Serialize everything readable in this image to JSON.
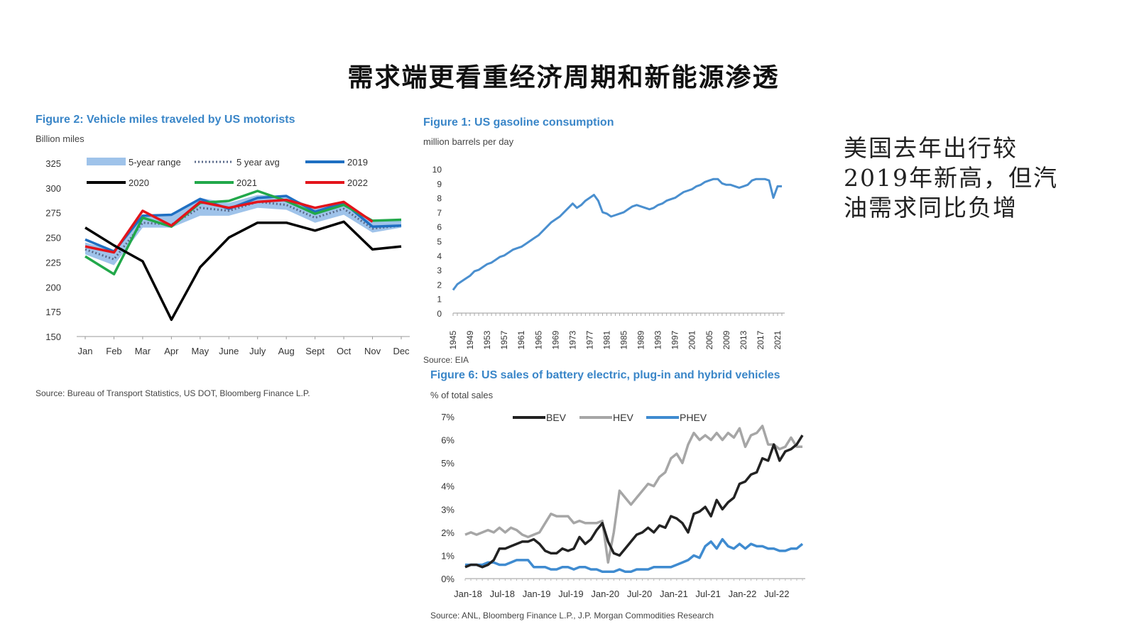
{
  "slide": {
    "title": "需求端更看重经济周期和新能源渗透",
    "side_note_lines": [
      "美国去年出行较",
      "2019年新高，但汽",
      "油需求同比负增"
    ]
  },
  "figures": {
    "vmt": {
      "title": "Figure 2: Vehicle miles traveled by US motorists",
      "unit": "Billion miles",
      "source": "Source: Bureau of Transport Statistics, US DOT, Bloomberg Finance L.P."
    },
    "gas": {
      "title": "Figure 1: US gasoline consumption",
      "unit": "million barrels per day",
      "source": "Source: EIA"
    },
    "ev": {
      "title": "Figure 6: US sales of battery electric, plug-in and hybrid vehicles",
      "unit": "% of total sales",
      "source": "Source: ANL, Bloomberg Finance L.P., J.P. Morgan Commodities Research"
    }
  },
  "colors": {
    "title_blue": "#3a86c8",
    "band": "#9fc3ea",
    "avg": "#5a6a8a",
    "s2019": "#1f6fc2",
    "s2020": "#000000",
    "s2021": "#22a84a",
    "s2022": "#e3141b",
    "gas_line": "#4a8fcf",
    "bev": "#222222",
    "hev": "#a6a6a6",
    "phev": "#3f8bd0"
  },
  "chart_data": [
    {
      "id": "vmt",
      "type": "line",
      "title": "Figure 2: Vehicle miles traveled by US motorists",
      "ylabel": "Billion miles",
      "categories": [
        "Jan",
        "Feb",
        "Mar",
        "Apr",
        "May",
        "June",
        "July",
        "Aug",
        "Sept",
        "Oct",
        "Nov",
        "Dec"
      ],
      "ylim": [
        150,
        325
      ],
      "yticks": [
        150,
        175,
        200,
        225,
        250,
        275,
        300,
        325
      ],
      "band": {
        "name": "5-year range",
        "low": [
          233,
          222,
          260,
          260,
          272,
          272,
          280,
          278,
          265,
          273,
          255,
          260
        ],
        "high": [
          245,
          237,
          273,
          274,
          290,
          285,
          293,
          292,
          280,
          287,
          267,
          267
        ]
      },
      "series": [
        {
          "name": "5 year avg",
          "key": "avg",
          "values": [
            238,
            228,
            265,
            263,
            280,
            277,
            286,
            283,
            270,
            279,
            259,
            262
          ]
        },
        {
          "name": "2019",
          "key": "s2019",
          "values": [
            248,
            236,
            272,
            273,
            289,
            279,
            290,
            292,
            276,
            285,
            261,
            262
          ]
        },
        {
          "name": "2020",
          "key": "s2020",
          "values": [
            260,
            242,
            226,
            167,
            220,
            250,
            265,
            265,
            257,
            266,
            238,
            241
          ]
        },
        {
          "name": "2021",
          "key": "s2021",
          "values": [
            231,
            213,
            270,
            261,
            285,
            287,
            297,
            287,
            274,
            283,
            267,
            268
          ]
        },
        {
          "name": "2022",
          "key": "s2022",
          "values": [
            241,
            235,
            277,
            262,
            286,
            280,
            286,
            288,
            280,
            286,
            266,
            null
          ]
        }
      ]
    },
    {
      "id": "gas",
      "type": "line",
      "title": "Figure 1: US gasoline consumption",
      "ylabel": "million barrels per day",
      "xlim": [
        1945,
        2022
      ],
      "ylim": [
        0,
        10
      ],
      "yticks": [
        0,
        1,
        2,
        3,
        4,
        5,
        6,
        7,
        8,
        9,
        10
      ],
      "xticks": [
        1945,
        1949,
        1953,
        1957,
        1961,
        1965,
        1969,
        1973,
        1977,
        1981,
        1985,
        1989,
        1993,
        1997,
        2001,
        2005,
        2009,
        2013,
        2017,
        2021
      ],
      "x": [
        1945,
        1946,
        1947,
        1948,
        1949,
        1950,
        1951,
        1952,
        1953,
        1954,
        1955,
        1956,
        1957,
        1958,
        1959,
        1960,
        1961,
        1962,
        1963,
        1964,
        1965,
        1966,
        1967,
        1968,
        1969,
        1970,
        1971,
        1972,
        1973,
        1974,
        1975,
        1976,
        1977,
        1978,
        1979,
        1980,
        1981,
        1982,
        1983,
        1984,
        1985,
        1986,
        1987,
        1988,
        1989,
        1990,
        1991,
        1992,
        1993,
        1994,
        1995,
        1996,
        1997,
        1998,
        1999,
        2000,
        2001,
        2002,
        2003,
        2004,
        2005,
        2006,
        2007,
        2008,
        2009,
        2010,
        2011,
        2012,
        2013,
        2014,
        2015,
        2016,
        2017,
        2018,
        2019,
        2020,
        2021,
        2022
      ],
      "y": [
        1.6,
        2.0,
        2.2,
        2.4,
        2.6,
        2.9,
        3.0,
        3.2,
        3.4,
        3.5,
        3.7,
        3.9,
        4.0,
        4.2,
        4.4,
        4.5,
        4.6,
        4.8,
        5.0,
        5.2,
        5.4,
        5.7,
        6.0,
        6.3,
        6.5,
        6.7,
        7.0,
        7.3,
        7.6,
        7.3,
        7.5,
        7.8,
        8.0,
        8.2,
        7.8,
        7.0,
        6.9,
        6.7,
        6.8,
        6.9,
        7.0,
        7.2,
        7.4,
        7.5,
        7.4,
        7.3,
        7.2,
        7.3,
        7.5,
        7.6,
        7.8,
        7.9,
        8.0,
        8.2,
        8.4,
        8.5,
        8.6,
        8.8,
        8.9,
        9.1,
        9.2,
        9.3,
        9.3,
        9.0,
        8.9,
        8.9,
        8.8,
        8.7,
        8.8,
        8.9,
        9.2,
        9.3,
        9.3,
        9.3,
        9.2,
        8.0,
        8.8,
        8.8
      ]
    },
    {
      "id": "ev",
      "type": "line",
      "title": "Figure 6: US sales of battery electric, plug-in and hybrid vehicles",
      "ylabel": "% of total sales",
      "ylim": [
        0,
        7
      ],
      "yticks": [
        0,
        1,
        2,
        3,
        4,
        5,
        6,
        7
      ],
      "ytick_labels": [
        "0%",
        "1%",
        "2%",
        "3%",
        "4%",
        "5%",
        "6%",
        "7%"
      ],
      "x_labels": [
        "Jan-18",
        "Jul-18",
        "Jan-19",
        "Jul-19",
        "Jan-20",
        "Jul-20",
        "Jan-21",
        "Jul-21",
        "Jan-22",
        "Jul-22"
      ],
      "x_label_positions": [
        0,
        6,
        12,
        18,
        24,
        30,
        36,
        42,
        48,
        54
      ],
      "series": [
        {
          "name": "BEV",
          "key": "bev",
          "values": [
            0.5,
            0.6,
            0.6,
            0.5,
            0.6,
            0.8,
            1.3,
            1.3,
            1.4,
            1.5,
            1.6,
            1.6,
            1.7,
            1.5,
            1.2,
            1.1,
            1.1,
            1.3,
            1.2,
            1.3,
            1.8,
            1.5,
            1.7,
            2.1,
            2.4,
            1.6,
            1.1,
            1.0,
            1.3,
            1.6,
            1.9,
            2.0,
            2.2,
            2.0,
            2.3,
            2.2,
            2.7,
            2.6,
            2.4,
            2.0,
            2.8,
            2.9,
            3.1,
            2.7,
            3.4,
            3.0,
            3.3,
            3.5,
            4.1,
            4.2,
            4.5,
            4.6,
            5.2,
            5.1,
            5.8,
            5.1,
            5.5,
            5.6,
            5.8,
            6.2
          ]
        },
        {
          "name": "HEV",
          "key": "hev",
          "values": [
            1.9,
            2.0,
            1.9,
            2.0,
            2.1,
            2.0,
            2.2,
            2.0,
            2.2,
            2.1,
            1.9,
            1.8,
            1.9,
            2.0,
            2.4,
            2.8,
            2.7,
            2.7,
            2.7,
            2.4,
            2.5,
            2.4,
            2.4,
            2.4,
            2.5,
            0.7,
            2.0,
            3.8,
            3.5,
            3.2,
            3.5,
            3.8,
            4.1,
            4.0,
            4.4,
            4.6,
            5.2,
            5.4,
            5.0,
            5.8,
            6.3,
            6.0,
            6.2,
            6.0,
            6.3,
            6.0,
            6.3,
            6.1,
            6.5,
            5.7,
            6.2,
            6.3,
            6.6,
            5.8,
            5.8,
            5.6,
            5.7,
            6.1,
            5.7,
            5.7
          ]
        },
        {
          "name": "PHEV",
          "key": "phev",
          "values": [
            0.6,
            0.6,
            0.6,
            0.6,
            0.7,
            0.7,
            0.6,
            0.6,
            0.7,
            0.8,
            0.8,
            0.8,
            0.5,
            0.5,
            0.5,
            0.4,
            0.4,
            0.5,
            0.5,
            0.4,
            0.5,
            0.5,
            0.4,
            0.4,
            0.3,
            0.3,
            0.3,
            0.4,
            0.3,
            0.3,
            0.4,
            0.4,
            0.4,
            0.5,
            0.5,
            0.5,
            0.5,
            0.6,
            0.7,
            0.8,
            1.0,
            0.9,
            1.4,
            1.6,
            1.3,
            1.7,
            1.4,
            1.3,
            1.5,
            1.3,
            1.5,
            1.4,
            1.4,
            1.3,
            1.3,
            1.2,
            1.2,
            1.3,
            1.3,
            1.5
          ]
        }
      ]
    }
  ]
}
